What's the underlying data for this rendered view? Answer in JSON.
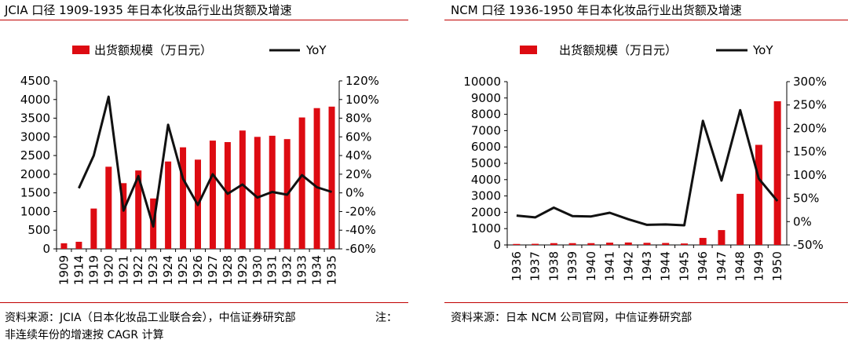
{
  "panels": [
    {
      "title": "JCIA 口径 1909-1935 年日本化妆品行业出货额及增速",
      "source": "资料来源：JCIA（日本化妆品工业联合会），中信证券研究部",
      "note": "注：",
      "source2": "非连续年份的增速按 CAGR 计算"
    },
    {
      "title": "NCM 口径 1936-1950 年日本化妆品行业出货额及增速",
      "source": "资料来源：日本 NCM 公司官网，中信证券研究部"
    }
  ],
  "colors": {
    "bar": "#dd0b12",
    "line": "#111111",
    "rule": "#c00000"
  },
  "chart_data": [
    {
      "type": "bar",
      "title": "JCIA 口径 1909-1935 年日本化妆品行业出货额及增速",
      "categories": [
        "1909",
        "1914",
        "1919",
        "1920",
        "1921",
        "1922",
        "1923",
        "1924",
        "1925",
        "1926",
        "1927",
        "1928",
        "1929",
        "1930",
        "1931",
        "1932",
        "1933",
        "1934",
        "1935"
      ],
      "series": [
        {
          "name": "出货额规模（万日元）",
          "type": "bar",
          "axis": "left",
          "values": [
            150,
            190,
            1080,
            2200,
            1760,
            2100,
            1350,
            2340,
            2720,
            2390,
            2900,
            2860,
            3170,
            3000,
            3030,
            2940,
            3520,
            3770,
            3810
          ]
        },
        {
          "name": "YoY",
          "type": "line",
          "axis": "right",
          "values": [
            null,
            5,
            40,
            103,
            -19,
            18,
            -36,
            73,
            15,
            -13,
            20,
            -1,
            9,
            -5,
            1,
            -2,
            19,
            6,
            1
          ]
        }
      ],
      "ylim_left": [
        0,
        4500
      ],
      "yticks_left": [
        "0",
        "500",
        "1000",
        "1500",
        "2000",
        "2500",
        "3000",
        "3500",
        "4000",
        "4500"
      ],
      "ylim_right": [
        -60,
        120
      ],
      "yticks_right": [
        "-60%",
        "-40%",
        "-20%",
        "0%",
        "20%",
        "40%",
        "60%",
        "80%",
        "100%",
        "120%"
      ]
    },
    {
      "type": "bar",
      "title": "NCM 口径 1936-1950 年日本化妆品行业出货额及增速",
      "categories": [
        "1936",
        "1937",
        "1938",
        "1939",
        "1940",
        "1941",
        "1942",
        "1943",
        "1944",
        "1945",
        "1946",
        "1947",
        "1948",
        "1949",
        "1950"
      ],
      "series": [
        {
          "name": "出货额规模（万日元）",
          "type": "bar",
          "axis": "left",
          "values": [
            60,
            70,
            110,
            110,
            110,
            140,
            150,
            130,
            120,
            90,
            430,
            910,
            3130,
            6130,
            8800
          ]
        },
        {
          "name": "YoY",
          "type": "line",
          "axis": "right",
          "values": [
            13,
            9,
            30,
            12,
            11,
            19,
            5,
            -7,
            -6,
            -8,
            216,
            88,
            239,
            92,
            44
          ]
        }
      ],
      "ylim_left": [
        0,
        10000
      ],
      "yticks_left": [
        "0",
        "1000",
        "2000",
        "3000",
        "4000",
        "5000",
        "6000",
        "7000",
        "8000",
        "9000",
        "10000"
      ],
      "ylim_right": [
        -50,
        300
      ],
      "yticks_right": [
        "-50%",
        "0%",
        "50%",
        "100%",
        "150%",
        "200%",
        "250%",
        "300%"
      ]
    }
  ]
}
